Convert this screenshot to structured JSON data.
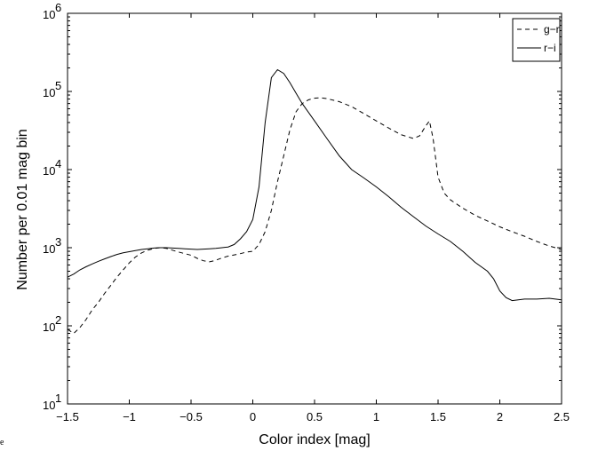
{
  "chart_data": {
    "type": "line",
    "title": "",
    "xlabel": "Color index [mag]",
    "ylabel": "Number per 0.01 mag bin",
    "xlim": [
      -1.5,
      2.5
    ],
    "ylim": [
      10,
      1000000
    ],
    "yscale": "log",
    "x_ticks": [
      -1.5,
      -1,
      -0.5,
      0,
      0.5,
      1,
      1.5,
      2,
      2.5
    ],
    "x_tick_labels": [
      "−1.5",
      "−1",
      "−0.5",
      "0",
      "0.5",
      "1",
      "1.5",
      "2",
      "2.5"
    ],
    "y_ticks": [
      10,
      100,
      1000,
      10000,
      100000,
      1000000
    ],
    "y_tick_bases": [
      "10",
      "10",
      "10",
      "10",
      "10",
      "10"
    ],
    "y_tick_exps": [
      "1",
      "2",
      "3",
      "4",
      "5",
      "6"
    ],
    "grid": false,
    "legend_position": "top-right",
    "series": [
      {
        "name": "g−r",
        "style": "dashed",
        "color": "#000000",
        "x": [
          -1.5,
          -1.45,
          -1.4,
          -1.35,
          -1.3,
          -1.25,
          -1.2,
          -1.15,
          -1.1,
          -1.05,
          -1.0,
          -0.95,
          -0.9,
          -0.85,
          -0.8,
          -0.75,
          -0.7,
          -0.65,
          -0.6,
          -0.55,
          -0.5,
          -0.45,
          -0.4,
          -0.35,
          -0.3,
          -0.25,
          -0.2,
          -0.15,
          -0.1,
          -0.05,
          0.0,
          0.05,
          0.1,
          0.15,
          0.2,
          0.25,
          0.3,
          0.35,
          0.4,
          0.45,
          0.5,
          0.55,
          0.6,
          0.7,
          0.8,
          0.9,
          1.0,
          1.1,
          1.2,
          1.3,
          1.35,
          1.4,
          1.43,
          1.46,
          1.5,
          1.55,
          1.6,
          1.7,
          1.8,
          1.9,
          2.0,
          2.1,
          2.2,
          2.3,
          2.4,
          2.5
        ],
        "y": [
          90,
          80,
          95,
          120,
          160,
          200,
          260,
          330,
          420,
          520,
          640,
          760,
          860,
          930,
          980,
          1000,
          980,
          930,
          880,
          840,
          800,
          730,
          680,
          660,
          690,
          740,
          780,
          810,
          840,
          880,
          900,
          1100,
          1600,
          3000,
          7000,
          15000,
          32000,
          55000,
          70000,
          78000,
          82000,
          83000,
          81000,
          74000,
          64000,
          52000,
          42000,
          34000,
          28000,
          25000,
          27000,
          36000,
          42000,
          25000,
          8000,
          5000,
          4100,
          3200,
          2600,
          2200,
          1850,
          1600,
          1400,
          1200,
          1050,
          950
        ]
      },
      {
        "name": "r−i",
        "style": "solid",
        "color": "#000000",
        "x": [
          -1.5,
          -1.45,
          -1.4,
          -1.35,
          -1.3,
          -1.25,
          -1.2,
          -1.15,
          -1.1,
          -1.05,
          -1.0,
          -0.95,
          -0.9,
          -0.85,
          -0.8,
          -0.75,
          -0.7,
          -0.65,
          -0.6,
          -0.55,
          -0.5,
          -0.45,
          -0.4,
          -0.35,
          -0.3,
          -0.25,
          -0.2,
          -0.15,
          -0.1,
          -0.05,
          0.0,
          0.05,
          0.1,
          0.15,
          0.2,
          0.25,
          0.3,
          0.35,
          0.4,
          0.5,
          0.6,
          0.7,
          0.8,
          0.9,
          1.0,
          1.1,
          1.2,
          1.3,
          1.4,
          1.5,
          1.6,
          1.7,
          1.8,
          1.9,
          1.95,
          2.0,
          2.05,
          2.1,
          2.2,
          2.3,
          2.4,
          2.5
        ],
        "y": [
          420,
          460,
          520,
          570,
          620,
          670,
          720,
          770,
          820,
          860,
          890,
          920,
          950,
          970,
          990,
          1000,
          1000,
          990,
          980,
          970,
          960,
          950,
          960,
          970,
          980,
          1000,
          1020,
          1100,
          1300,
          1600,
          2300,
          6000,
          40000,
          150000,
          190000,
          170000,
          130000,
          95000,
          70000,
          42000,
          25000,
          15000,
          10000,
          7800,
          6000,
          4500,
          3300,
          2500,
          1900,
          1500,
          1200,
          900,
          650,
          500,
          400,
          280,
          230,
          210,
          220,
          220,
          225,
          215
        ]
      }
    ]
  },
  "stray_text": "e"
}
